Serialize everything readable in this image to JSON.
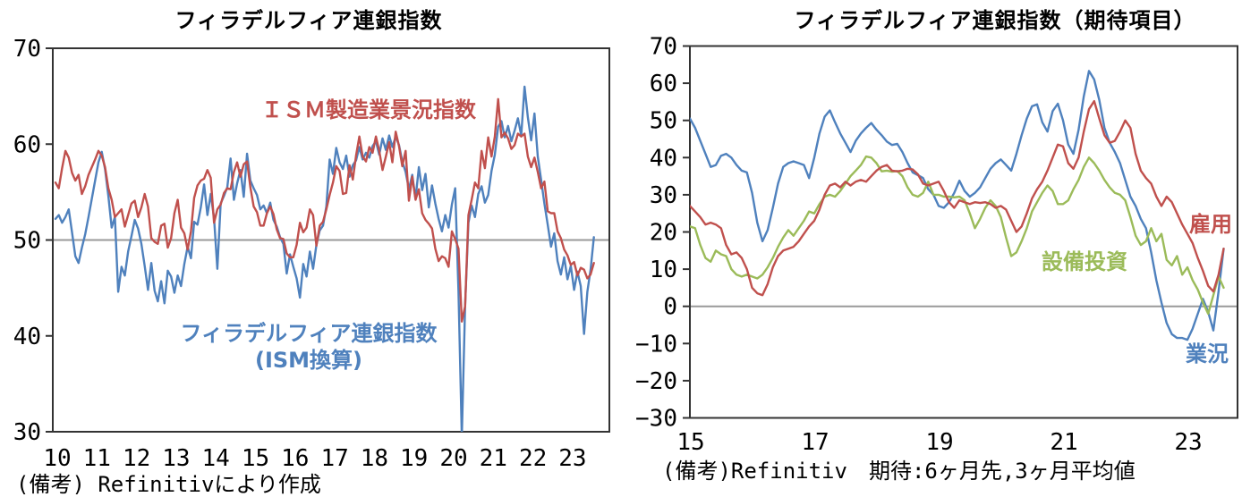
{
  "page_background": "#ffffff",
  "chart_data": [
    {
      "id": "philly-fed-vs-ism",
      "type": "line",
      "title": "フィラデルフィア連銀指数",
      "note": "(備考) Refinitivにより作成",
      "x_start": "2010-01",
      "x_end": "2023-08",
      "x_frequency": "monthly",
      "xlim": [
        2010.0,
        2024.05
      ],
      "ylim": [
        30,
        70
      ],
      "yticks": [
        70,
        60,
        50,
        40,
        30
      ],
      "xtick_labels": [
        "10",
        "11",
        "12",
        "13",
        "14",
        "15",
        "16",
        "17",
        "18",
        "19",
        "20",
        "21",
        "22",
        "23"
      ],
      "xtick_years": [
        2010,
        2011,
        2012,
        2013,
        2014,
        2015,
        2016,
        2017,
        2018,
        2019,
        2020,
        2021,
        2022,
        2023
      ],
      "reference_line_y": 50,
      "grid": false,
      "legend_position": "inline-annotations",
      "axis_color": "#333333",
      "reference_line_color": "#999999",
      "annotations": [
        {
          "text": "ＩＳＭ製造業景況指数",
          "series": "ism",
          "color": "#C0504D"
        },
        {
          "text": "フィラデルフィア連銀指数",
          "series": "philly",
          "color": "#4F81BD"
        },
        {
          "text": "(ISM換算)",
          "series": "philly",
          "color": "#4F81BD"
        }
      ],
      "series": [
        {
          "name": "フィラデルフィア連銀指数(ISM換算)",
          "color": "#4F81BD",
          "values": [
            52.2,
            52.6,
            51.8,
            52.4,
            53.2,
            50.8,
            48.3,
            47.6,
            49.2,
            50.6,
            52.4,
            54.3,
            56.2,
            58.1,
            59.2,
            57.4,
            54.6,
            51.3,
            52.4,
            44.6,
            47.2,
            46.3,
            48.8,
            50.4,
            52.1,
            51.2,
            49.6,
            47.3,
            44.8,
            47.6,
            44.7,
            43.6,
            45.7,
            43.4,
            46.8,
            46.2,
            44.5,
            46.3,
            45.2,
            47.5,
            49.3,
            48.1,
            51.9,
            51.6,
            53.4,
            55.8,
            52.6,
            54.8,
            52.3,
            47.0,
            53.8,
            54.6,
            55.5,
            58.5,
            54.2,
            55.9,
            57.3,
            54.5,
            59.0,
            56.2,
            55.4,
            54.7,
            53.2,
            53.6,
            52.8,
            53.9,
            52.1,
            51.4,
            50.3,
            49.6,
            46.5,
            48.5,
            47.2,
            46.0,
            44.0,
            47.5,
            46.2,
            48.8,
            47.0,
            49.5,
            51.0,
            51.5,
            53.5,
            58.4,
            56.9,
            59.6,
            58.1,
            57.4,
            58.8,
            56.6,
            57.8,
            58.3,
            59.7,
            58.4,
            59.1,
            58.6,
            59.8,
            60.3,
            58.9,
            60.6,
            59.4,
            60.9,
            59.7,
            60.8,
            59.9,
            58.2,
            57.1,
            55.3,
            56.8,
            54.3,
            57.6,
            55.2,
            56.9,
            53.4,
            55.7,
            53.8,
            52.2,
            50.9,
            52.6,
            51.3,
            53.7,
            55.4,
            44.6,
            29.5,
            43.2,
            51.8,
            53.6,
            52.4,
            54.8,
            55.6,
            53.9,
            54.7,
            57.2,
            58.9,
            61.8,
            62.4,
            60.7,
            61.9,
            60.3,
            61.4,
            62.7,
            60.9,
            66.0,
            62.8,
            60.4,
            63.2,
            58.7,
            56.3,
            53.8,
            51.6,
            49.3,
            50.7,
            47.8,
            46.4,
            48.2,
            45.9,
            47.3,
            44.8,
            46.7,
            45.2,
            40.2,
            44.6,
            46.9,
            50.3
          ]
        },
        {
          "name": "ＩＳＭ製造業景況指数",
          "color": "#C0504D",
          "values": [
            56.0,
            55.4,
            57.5,
            59.3,
            58.6,
            57.0,
            56.2,
            56.8,
            54.8,
            55.6,
            56.8,
            57.6,
            58.4,
            59.3,
            58.8,
            57.6,
            55.4,
            54.2,
            52.4,
            52.8,
            53.2,
            51.4,
            52.6,
            53.8,
            54.1,
            52.4,
            53.4,
            54.8,
            53.5,
            50.2,
            49.8,
            49.6,
            51.5,
            51.7,
            49.2,
            50.2,
            52.8,
            54.2,
            51.3,
            50.7,
            49.0,
            50.9,
            54.4,
            55.7,
            56.2,
            56.4,
            57.3,
            56.5,
            51.8,
            53.2,
            53.7,
            54.9,
            55.4,
            55.3,
            57.1,
            58.1,
            56.6,
            57.9,
            58.2,
            55.5,
            53.5,
            52.9,
            51.5,
            51.5,
            52.8,
            53.5,
            52.7,
            51.1,
            50.2,
            50.1,
            48.6,
            48.2,
            48.2,
            49.5,
            51.8,
            50.8,
            51.3,
            53.2,
            52.6,
            49.4,
            51.5,
            51.9,
            53.2,
            54.7,
            56.0,
            57.7,
            57.2,
            54.8,
            54.9,
            57.8,
            56.3,
            58.8,
            60.8,
            58.7,
            58.2,
            59.7,
            59.1,
            60.8,
            59.3,
            57.3,
            58.7,
            60.2,
            58.1,
            61.3,
            59.8,
            57.7,
            59.3,
            54.1,
            56.6,
            54.2,
            55.3,
            52.8,
            52.1,
            51.7,
            51.2,
            49.1,
            47.8,
            48.3,
            48.1,
            47.2,
            50.9,
            50.1,
            49.1,
            41.5,
            43.1,
            52.6,
            54.2,
            56.0,
            55.4,
            59.3,
            57.5,
            60.7,
            58.7,
            60.8,
            64.7,
            60.7,
            61.2,
            60.6,
            59.5,
            59.9,
            61.1,
            60.8,
            61.1,
            58.7,
            57.6,
            58.6,
            57.1,
            55.4,
            56.1,
            53.0,
            52.8,
            52.8,
            50.9,
            50.2,
            49.0,
            48.4,
            47.4,
            47.7,
            46.3,
            47.1,
            46.9,
            46.0,
            46.4,
            47.6
          ]
        }
      ]
    },
    {
      "id": "philly-fed-expectations",
      "type": "line",
      "title": "フィラデルフィア連銀指数（期待項目）",
      "note": "(備考)Refinitiv　期待:6ヶ月先,3ヶ月平均値",
      "x_start": "2015-01",
      "x_end": "2023-08",
      "x_frequency": "monthly",
      "xlim": [
        2015.0,
        2023.81
      ],
      "ylim": [
        -30,
        70
      ],
      "yticks": [
        70,
        60,
        50,
        40,
        30,
        20,
        10,
        0,
        -10,
        -20,
        -30
      ],
      "xtick_labels": [
        "15",
        "17",
        "19",
        "21",
        "23"
      ],
      "xtick_years": [
        2015,
        2017,
        2019,
        2021,
        2023
      ],
      "reference_line_y": 0,
      "grid": false,
      "legend_position": "inline-annotations",
      "axis_color": "#333333",
      "reference_line_color": "#999999",
      "annotations": [
        {
          "text": "雇用",
          "series": "employment",
          "color": "#C0504D"
        },
        {
          "text": "設備投資",
          "series": "capex",
          "color": "#9BBB59"
        },
        {
          "text": "業況",
          "series": "activity",
          "color": "#4F81BD"
        }
      ],
      "series": [
        {
          "name": "業況",
          "color": "#4F81BD",
          "values": [
            50.5,
            48.0,
            44.5,
            41.0,
            37.5,
            38.0,
            40.5,
            41.0,
            40.0,
            38.0,
            36.5,
            36.0,
            30.5,
            22.5,
            17.5,
            20.5,
            26.5,
            33.0,
            37.5,
            38.5,
            39.0,
            38.5,
            38.0,
            34.5,
            40.0,
            46.5,
            51.0,
            52.7,
            49.5,
            46.5,
            44.0,
            41.5,
            44.5,
            46.5,
            48.0,
            49.3,
            47.5,
            46.0,
            44.3,
            43.4,
            43.7,
            41.5,
            38.5,
            36.0,
            35.3,
            34.5,
            31.5,
            30.0,
            27.0,
            26.5,
            28.0,
            30.5,
            33.8,
            31.0,
            29.5,
            30.5,
            32.0,
            34.5,
            37.0,
            38.5,
            39.5,
            38.0,
            36.5,
            41.0,
            46.0,
            50.5,
            53.8,
            54.3,
            49.5,
            47.0,
            52.5,
            54.5,
            50.0,
            43.5,
            41.0,
            47.5,
            56.5,
            63.3,
            61.0,
            55.5,
            48.0,
            44.0,
            41.5,
            38.5,
            34.0,
            29.5,
            27.0,
            23.5,
            21.0,
            14.5,
            7.0,
            1.0,
            -4.5,
            -7.5,
            -8.5,
            -8.5,
            -9.0,
            -6.0,
            -2.0,
            2.0,
            -1.5,
            -6.5,
            4.0,
            15.5
          ]
        },
        {
          "name": "設備投資",
          "color": "#9BBB59",
          "values": [
            21.5,
            21.0,
            16.5,
            13.0,
            12.0,
            15.0,
            14.0,
            13.5,
            10.0,
            8.5,
            8.0,
            8.5,
            8.0,
            7.5,
            8.5,
            10.5,
            13.0,
            16.0,
            18.5,
            20.5,
            19.0,
            21.0,
            23.0,
            25.5,
            25.0,
            27.5,
            29.5,
            30.0,
            29.5,
            31.0,
            33.0,
            35.0,
            36.5,
            38.0,
            40.3,
            40.0,
            38.5,
            36.3,
            36.5,
            36.2,
            36.4,
            35.0,
            32.0,
            30.0,
            29.5,
            30.5,
            33.5,
            30.0,
            30.0,
            29.5,
            29.5,
            29.3,
            29.5,
            28.5,
            25.0,
            21.0,
            23.5,
            26.5,
            28.5,
            27.0,
            24.0,
            18.5,
            13.5,
            14.5,
            17.5,
            21.0,
            25.5,
            28.0,
            30.5,
            32.5,
            31.0,
            27.5,
            27.5,
            28.5,
            31.5,
            34.0,
            37.5,
            40.0,
            38.5,
            36.5,
            34.0,
            32.0,
            30.5,
            30.0,
            28.5,
            24.0,
            19.0,
            16.5,
            17.5,
            21.0,
            17.5,
            19.5,
            12.5,
            11.0,
            13.5,
            8.5,
            10.5,
            7.0,
            4.5,
            1.0,
            -2.0,
            3.0,
            8.0,
            5.0
          ]
        },
        {
          "name": "雇用",
          "color": "#C0504D",
          "values": [
            27.0,
            25.5,
            24.0,
            22.0,
            22.5,
            22.0,
            21.0,
            16.5,
            14.0,
            14.5,
            13.0,
            10.0,
            5.0,
            3.5,
            3.0,
            6.0,
            10.5,
            13.5,
            15.0,
            15.5,
            16.0,
            17.5,
            19.5,
            21.5,
            23.0,
            26.0,
            30.0,
            32.5,
            33.0,
            32.0,
            33.5,
            32.5,
            33.5,
            34.0,
            33.5,
            35.0,
            36.5,
            37.5,
            38.0,
            36.5,
            36.3,
            36.5,
            37.0,
            36.8,
            35.5,
            33.0,
            32.5,
            33.0,
            33.5,
            31.0,
            28.0,
            26.5,
            28.5,
            28.0,
            27.5,
            28.0,
            27.8,
            28.0,
            27.5,
            26.5,
            27.0,
            26.0,
            23.0,
            20.0,
            21.5,
            25.0,
            29.0,
            31.5,
            33.5,
            36.5,
            40.0,
            43.5,
            43.0,
            38.5,
            37.0,
            40.0,
            47.0,
            53.0,
            55.2,
            50.5,
            46.0,
            44.0,
            44.5,
            47.0,
            50.0,
            48.0,
            41.0,
            36.5,
            34.5,
            33.0,
            29.5,
            27.0,
            29.5,
            28.0,
            25.0,
            22.0,
            19.5,
            17.0,
            13.0,
            9.5,
            5.5,
            4.0,
            8.5,
            15.5
          ]
        }
      ]
    }
  ]
}
